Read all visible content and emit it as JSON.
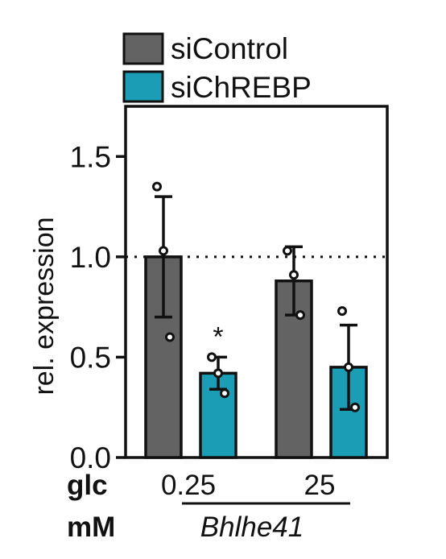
{
  "chart_data": {
    "type": "bar",
    "title": "",
    "ylabel": "rel. expression",
    "ylim": [
      0,
      1.75
    ],
    "yticks": [
      "0.0",
      "0.5",
      "1.0",
      "1.5"
    ],
    "ytick_values": [
      0,
      0.5,
      1.0,
      1.5
    ],
    "reference_line": 1.0,
    "grid": false,
    "legend_position": "top",
    "x_row_label_1": "glc",
    "x_row_label_2": "mM",
    "gene_label": "Bhlhe41",
    "groups": [
      {
        "label": "0.25",
        "bars": [
          {
            "series": 0,
            "mean": 1.0,
            "sd": 0.3,
            "points": [
              1.35,
              1.03,
              0.6
            ]
          },
          {
            "series": 1,
            "mean": 0.42,
            "sd": 0.08,
            "points": [
              0.5,
              0.42,
              0.32
            ],
            "annotation": "*"
          }
        ]
      },
      {
        "label": "25",
        "bars": [
          {
            "series": 0,
            "mean": 0.88,
            "sd": 0.17,
            "points": [
              1.03,
              0.91,
              0.71
            ]
          },
          {
            "series": 1,
            "mean": 0.45,
            "sd": 0.21,
            "points": [
              0.73,
              0.45,
              0.25
            ]
          }
        ]
      }
    ],
    "series": [
      {
        "name": "siControl",
        "color": "#636363"
      },
      {
        "name": "siChREBP",
        "color": "#1a9db5"
      }
    ]
  }
}
